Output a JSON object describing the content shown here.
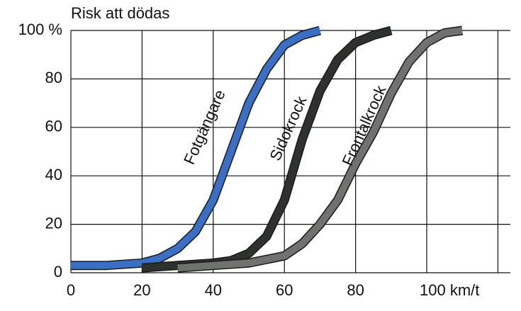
{
  "chart_data": {
    "type": "line",
    "y_axis_label": "Risk att dödas",
    "xlim": [
      0,
      123.5
    ],
    "ylim": [
      0,
      100
    ],
    "xticks": [
      0,
      20,
      40,
      60,
      80,
      {
        "value": 100,
        "label": "100 km/t"
      },
      {
        "value": 120,
        "label": null
      }
    ],
    "yticks": [
      0,
      20,
      40,
      60,
      80,
      {
        "value": 100,
        "label": "100 %"
      }
    ],
    "grid": true,
    "series": [
      {
        "name": "Fotgängare",
        "color": "#3a6fc4",
        "x": [
          0,
          10,
          20,
          25,
          30,
          35,
          40,
          45,
          50,
          55,
          60,
          65,
          70
        ],
        "values": [
          3,
          3,
          4,
          6,
          10,
          17,
          30,
          50,
          70,
          84,
          94,
          98,
          100
        ]
      },
      {
        "name": "Sidokrock",
        "color": "#2e322e",
        "x": [
          20,
          30,
          40,
          45,
          50,
          55,
          60,
          65,
          70,
          75,
          80,
          85,
          90
        ],
        "values": [
          2,
          3,
          4,
          5,
          8,
          15,
          30,
          55,
          75,
          88,
          95,
          98,
          100
        ]
      },
      {
        "name": "Frontalkrock",
        "color": "#707270",
        "x": [
          30,
          40,
          50,
          60,
          65,
          70,
          75,
          80,
          85,
          90,
          95,
          100,
          105,
          110
        ],
        "values": [
          2,
          3,
          4,
          7,
          12,
          20,
          30,
          45,
          58,
          74,
          87,
          95,
          99,
          100
        ]
      }
    ]
  }
}
